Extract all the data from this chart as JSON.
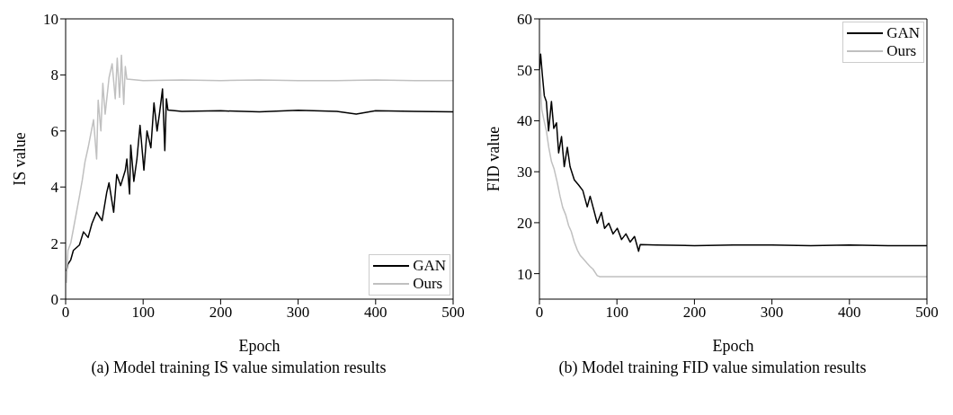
{
  "chart_data": [
    {
      "type": "line",
      "title": "(a) Model training IS value simulation results",
      "xlabel": "Epoch",
      "ylabel": "IS value",
      "xlim": [
        0,
        500
      ],
      "xticks": [
        0,
        100,
        200,
        300,
        400,
        500
      ],
      "ylim": [
        0,
        10
      ],
      "yticks": [
        0,
        2,
        4,
        6,
        8,
        10
      ],
      "legend": "bottom right",
      "grid": false,
      "marker": "none",
      "line_style": "solid",
      "series": [
        {
          "name": "GAN",
          "color": "#000000",
          "x": [
            1,
            3,
            6.6,
            10,
            17.8,
            23,
            29,
            34,
            40,
            47,
            53,
            56,
            62,
            66,
            71,
            77,
            79,
            82.5,
            84,
            88,
            92,
            96,
            101,
            105,
            110,
            114,
            118,
            121,
            125,
            128,
            130,
            132,
            150,
            200,
            250,
            300,
            350,
            375,
            400,
            450,
            500
          ],
          "values": [
            1.0,
            1.25,
            1.4,
            1.74,
            1.93,
            2.4,
            2.2,
            2.7,
            3.1,
            2.8,
            3.8,
            4.15,
            3.1,
            4.45,
            4.05,
            4.6,
            5.0,
            3.75,
            5.5,
            4.2,
            5.0,
            6.2,
            4.6,
            6.0,
            5.4,
            7.0,
            6.0,
            6.6,
            7.5,
            5.3,
            7.15,
            6.75,
            6.7,
            6.72,
            6.68,
            6.74,
            6.7,
            6.6,
            6.72,
            6.7,
            6.68
          ]
        },
        {
          "name": "Ours",
          "color": "#c0c0c0",
          "x": [
            1,
            3,
            6.6,
            10,
            14,
            18,
            21.5,
            25,
            29,
            32.5,
            36,
            40,
            42,
            45.5,
            48,
            51,
            56,
            60,
            64,
            66.6,
            69.6,
            72,
            75,
            77,
            79,
            100,
            150,
            200,
            250,
            300,
            350,
            400,
            450,
            500
          ],
          "values": [
            0.58,
            1.74,
            2.0,
            2.5,
            3.1,
            3.7,
            4.25,
            4.9,
            5.4,
            5.9,
            6.4,
            5.0,
            7.1,
            6.0,
            7.7,
            6.6,
            7.9,
            8.4,
            7.15,
            8.6,
            7.2,
            8.7,
            6.95,
            8.3,
            7.85,
            7.8,
            7.82,
            7.8,
            7.82,
            7.8,
            7.8,
            7.82,
            7.8,
            7.8
          ]
        }
      ]
    },
    {
      "type": "line",
      "title": "(b) Model training FID value simulation results",
      "xlabel": "Epoch",
      "ylabel": "FID value",
      "xlim": [
        0,
        500
      ],
      "xticks": [
        0,
        100,
        200,
        300,
        400,
        500
      ],
      "ylim": [
        5,
        60
      ],
      "yticks": [
        10,
        20,
        30,
        40,
        50,
        60
      ],
      "legend": "top right",
      "grid": false,
      "marker": "none",
      "line_style": "solid",
      "series": [
        {
          "name": "GAN",
          "color": "#000000",
          "x": [
            0,
            1.5,
            3.7,
            6.3,
            8.9,
            11.8,
            15.5,
            18.5,
            22,
            24.8,
            28.5,
            32,
            36,
            39.5,
            45,
            50.6,
            56,
            61.7,
            65.4,
            71,
            74.6,
            80,
            84,
            89.5,
            95,
            100.5,
            106,
            111.6,
            117,
            122.7,
            125.6,
            128,
            130,
            150,
            200,
            250,
            300,
            350,
            400,
            450,
            500
          ],
          "values": [
            50,
            53.1,
            49.1,
            44.9,
            43.8,
            38,
            43.8,
            38.5,
            39.6,
            33.7,
            36.9,
            31,
            34.8,
            31,
            28.4,
            27.4,
            26.3,
            23.1,
            25.2,
            22,
            19.9,
            22,
            18.9,
            19.9,
            17.8,
            18.9,
            16.7,
            17.8,
            16.2,
            17.3,
            15.7,
            14.4,
            15.7,
            15.6,
            15.5,
            15.6,
            15.6,
            15.5,
            15.6,
            15.5,
            15.5
          ]
        },
        {
          "name": "Ours",
          "color": "#c0c0c0",
          "x": [
            0,
            1.5,
            3,
            6,
            9,
            12,
            15.5,
            19,
            23,
            26.6,
            30,
            34,
            37.7,
            41,
            45,
            49,
            52.5,
            56,
            61.7,
            65.4,
            69,
            74.6,
            78,
            100,
            150,
            200,
            250,
            300,
            350,
            400,
            450,
            500
          ],
          "values": [
            50,
            46.5,
            42.2,
            40,
            38,
            34.8,
            32,
            30.5,
            27.9,
            25.2,
            23,
            21.5,
            19.4,
            18.3,
            16.2,
            14.6,
            13.6,
            13,
            12,
            11.4,
            10.9,
            9.6,
            9.4,
            9.4,
            9.4,
            9.4,
            9.4,
            9.4,
            9.4,
            9.4,
            9.4,
            9.4
          ]
        }
      ]
    }
  ]
}
